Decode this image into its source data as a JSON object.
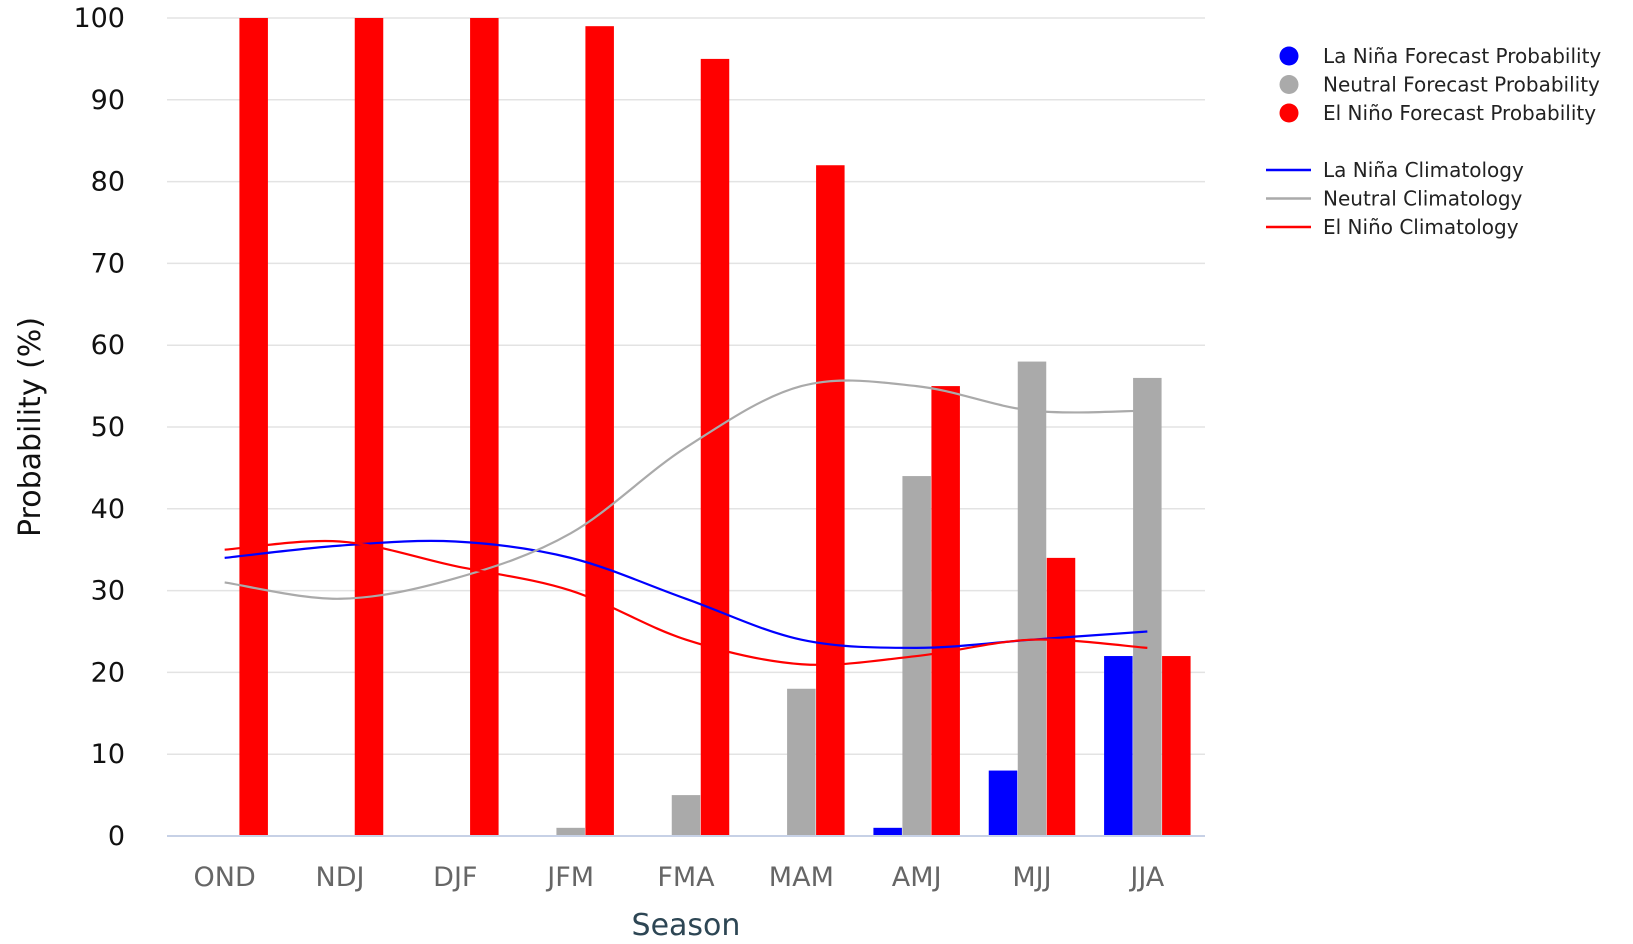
{
  "chart_data": {
    "type": "bar",
    "title": "",
    "xlabel": "Season",
    "ylabel": "Probability (%)",
    "ylim": [
      0,
      100
    ],
    "yticks": [
      0,
      10,
      20,
      30,
      40,
      50,
      60,
      70,
      80,
      90,
      100
    ],
    "categories": [
      "OND",
      "NDJ",
      "DJF",
      "JFM",
      "FMA",
      "MAM",
      "AMJ",
      "MJJ",
      "JJA"
    ],
    "grid": true,
    "legend_position": "right",
    "bar_series": [
      {
        "name": "La Niña Forecast Probability",
        "color": "#0000ff",
        "values": [
          0,
          0,
          0,
          0,
          0,
          0,
          1,
          8,
          22
        ]
      },
      {
        "name": "Neutral Forecast Probability",
        "color": "#aaaaaa",
        "values": [
          0,
          0,
          0,
          1,
          5,
          18,
          44,
          58,
          56
        ]
      },
      {
        "name": "El Niño Forecast Probability",
        "color": "#ff0000",
        "values": [
          100,
          100,
          100,
          99,
          95,
          82,
          55,
          34,
          22
        ]
      }
    ],
    "line_series": [
      {
        "name": "La Niña Climatology",
        "color": "#0000ff",
        "values": [
          34,
          35.5,
          36,
          34,
          29,
          24,
          23,
          24,
          25
        ]
      },
      {
        "name": "Neutral Climatology",
        "color": "#aaaaaa",
        "values": [
          31,
          29,
          31.5,
          37,
          47.5,
          55,
          55,
          52,
          52
        ]
      },
      {
        "name": "El Niño Climatology",
        "color": "#ff0000",
        "values": [
          35,
          36,
          33,
          30,
          24,
          21,
          22,
          24,
          23
        ]
      }
    ]
  }
}
